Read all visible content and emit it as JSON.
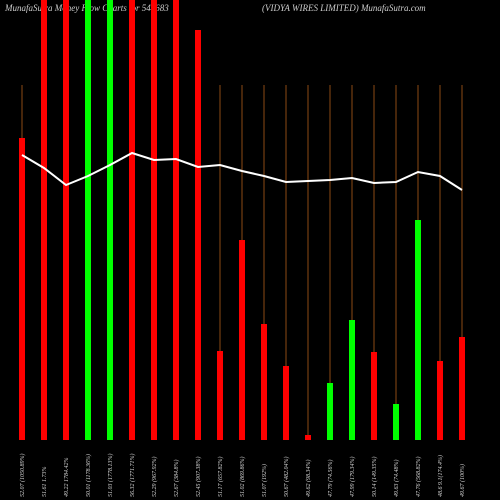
{
  "chart_data": {
    "type": "bar",
    "title": "MunafaSutra Money Flow Charts for 544683",
    "subtitle": "(VIDYA WIRES LIMITED) MunafaSutra.com",
    "categories": [
      "52.07 (1050.89%)",
      "51.61 1.73%",
      "49.22 1784.42%",
      "50.01 (1178.36%)",
      "51.03 (1778.13%)",
      "56.32 (1771.71%)",
      "52.29 (967.92%)",
      "52.67 (384.8%)",
      "52.45 (907.38%)",
      "51.17 (657.82%)",
      "51.02 (869.86%)",
      "51.07 (192%)",
      "50.67 (482.04%)",
      "49.62 (98.34%)",
      "47.79 (74.56%)",
      "47.99 (179.34%)",
      "50.14 (149.35%)",
      "49.63 (74.48%)",
      "47.76 (568.82%)",
      "48.6 9.1(174.4%)",
      "49.67 (100%)"
    ],
    "values": [
      302,
      440,
      440,
      440,
      440,
      440,
      440,
      440,
      410,
      89,
      200,
      116,
      74,
      5,
      57,
      120,
      88,
      36,
      220,
      79,
      103
    ],
    "colors": [
      "#ff0000",
      "#ff0000",
      "#ff0000",
      "#00ff00",
      "#00ff00",
      "#ff0000",
      "#ff0000",
      "#ff0000",
      "#ff0000",
      "#ff0000",
      "#ff0000",
      "#ff0000",
      "#ff0000",
      "#ff0000",
      "#00ff00",
      "#00ff00",
      "#ff0000",
      "#00ff00",
      "#00ff00",
      "#ff0000",
      "#ff0000"
    ],
    "line_values": [
      285,
      272,
      255,
      264,
      275,
      287,
      280,
      281,
      273,
      275,
      269,
      264,
      258,
      259,
      260,
      262,
      257,
      258,
      268,
      264,
      250
    ],
    "line_color": "#ffffff",
    "grid_color": "#8b4a14",
    "ylim": [
      0,
      440
    ]
  }
}
